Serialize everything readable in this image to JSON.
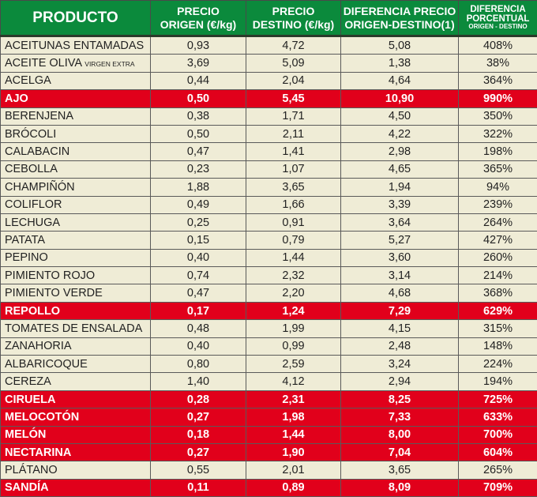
{
  "colors": {
    "header": "#0b8a3c",
    "row": "#efecd6",
    "highlight": "#e1001b"
  },
  "header": {
    "product": "PRODUCTO",
    "origin_1": "PRECIO",
    "origin_2": "ORIGEN (€/kg)",
    "dest_1": "PRECIO",
    "dest_2": "DESTINO (€/kg)",
    "diff_1": "DIFERENCIA PRECIO",
    "diff_2": "ORIGEN-DESTINO(1)",
    "pct_1": "DIFERENCIA",
    "pct_2": "PORCENTUAL",
    "pct_3": "ORIGEN - DESTINO"
  },
  "rows": [
    {
      "name": "ACEITUNAS ENTAMADAS",
      "origin": "0,93",
      "dest": "4,72",
      "diff": "5,08",
      "pct": "408%",
      "highlight": false
    },
    {
      "name": "ACEITE OLIVA",
      "name_small": "VIRGEN EXTRA",
      "origin": "3,69",
      "dest": "5,09",
      "diff": "1,38",
      "pct": "38%",
      "highlight": false
    },
    {
      "name": "ACELGA",
      "origin": "0,44",
      "dest": "2,04",
      "diff": "4,64",
      "pct": "364%",
      "highlight": false
    },
    {
      "name": "AJO",
      "origin": "0,50",
      "dest": "5,45",
      "diff": "10,90",
      "pct": "990%",
      "highlight": true
    },
    {
      "name": "BERENJENA",
      "origin": "0,38",
      "dest": "1,71",
      "diff": "4,50",
      "pct": "350%",
      "highlight": false
    },
    {
      "name": "BRÓCOLI",
      "origin": "0,50",
      "dest": "2,11",
      "diff": "4,22",
      "pct": "322%",
      "highlight": false
    },
    {
      "name": "CALABACIN",
      "origin": "0,47",
      "dest": "1,41",
      "diff": "2,98",
      "pct": "198%",
      "highlight": false
    },
    {
      "name": "CEBOLLA",
      "origin": "0,23",
      "dest": "1,07",
      "diff": "4,65",
      "pct": "365%",
      "highlight": false
    },
    {
      "name": "CHAMPIÑÓN",
      "origin": "1,88",
      "dest": "3,65",
      "diff": "1,94",
      "pct": "94%",
      "highlight": false
    },
    {
      "name": "COLIFLOR",
      "origin": "0,49",
      "dest": "1,66",
      "diff": "3,39",
      "pct": "239%",
      "highlight": false
    },
    {
      "name": "LECHUGA",
      "origin": "0,25",
      "dest": "0,91",
      "diff": "3,64",
      "pct": "264%",
      "highlight": false
    },
    {
      "name": "PATATA",
      "origin": "0,15",
      "dest": "0,79",
      "diff": "5,27",
      "pct": "427%",
      "highlight": false
    },
    {
      "name": "PEPINO",
      "origin": "0,40",
      "dest": "1,44",
      "diff": "3,60",
      "pct": "260%",
      "highlight": false
    },
    {
      "name": "PIMIENTO ROJO",
      "origin": "0,74",
      "dest": "2,32",
      "diff": "3,14",
      "pct": "214%",
      "highlight": false
    },
    {
      "name": "PIMIENTO VERDE",
      "origin": "0,47",
      "dest": "2,20",
      "diff": "4,68",
      "pct": "368%",
      "highlight": false
    },
    {
      "name": "REPOLLO",
      "origin": "0,17",
      "dest": "1,24",
      "diff": "7,29",
      "pct": "629%",
      "highlight": true
    },
    {
      "name": "TOMATES DE ENSALADA",
      "origin": "0,48",
      "dest": "1,99",
      "diff": "4,15",
      "pct": "315%",
      "highlight": false
    },
    {
      "name": "ZANAHORIA",
      "origin": "0,40",
      "dest": "0,99",
      "diff": "2,48",
      "pct": "148%",
      "highlight": false
    },
    {
      "name": "ALBARICOQUE",
      "origin": "0,80",
      "dest": "2,59",
      "diff": "3,24",
      "pct": "224%",
      "highlight": false
    },
    {
      "name": "CEREZA",
      "origin": "1,40",
      "dest": "4,12",
      "diff": "2,94",
      "pct": "194%",
      "highlight": false
    },
    {
      "name": "CIRUELA",
      "origin": "0,28",
      "dest": "2,31",
      "diff": "8,25",
      "pct": "725%",
      "highlight": true
    },
    {
      "name": "MELOCOTÓN",
      "origin": "0,27",
      "dest": "1,98",
      "diff": "7,33",
      "pct": "633%",
      "highlight": true
    },
    {
      "name": "MELÓN",
      "origin": "0,18",
      "dest": "1,44",
      "diff": "8,00",
      "pct": "700%",
      "highlight": true
    },
    {
      "name": "NECTARINA",
      "origin": "0,27",
      "dest": "1,90",
      "diff": "7,04",
      "pct": "604%",
      "highlight": true
    },
    {
      "name": "PLÁTANO",
      "origin": "0,55",
      "dest": "2,01",
      "diff": "3,65",
      "pct": "265%",
      "highlight": false
    },
    {
      "name": "SANDÍA",
      "origin": "0,11",
      "dest": "0,89",
      "diff": "8,09",
      "pct": "709%",
      "highlight": true
    }
  ]
}
